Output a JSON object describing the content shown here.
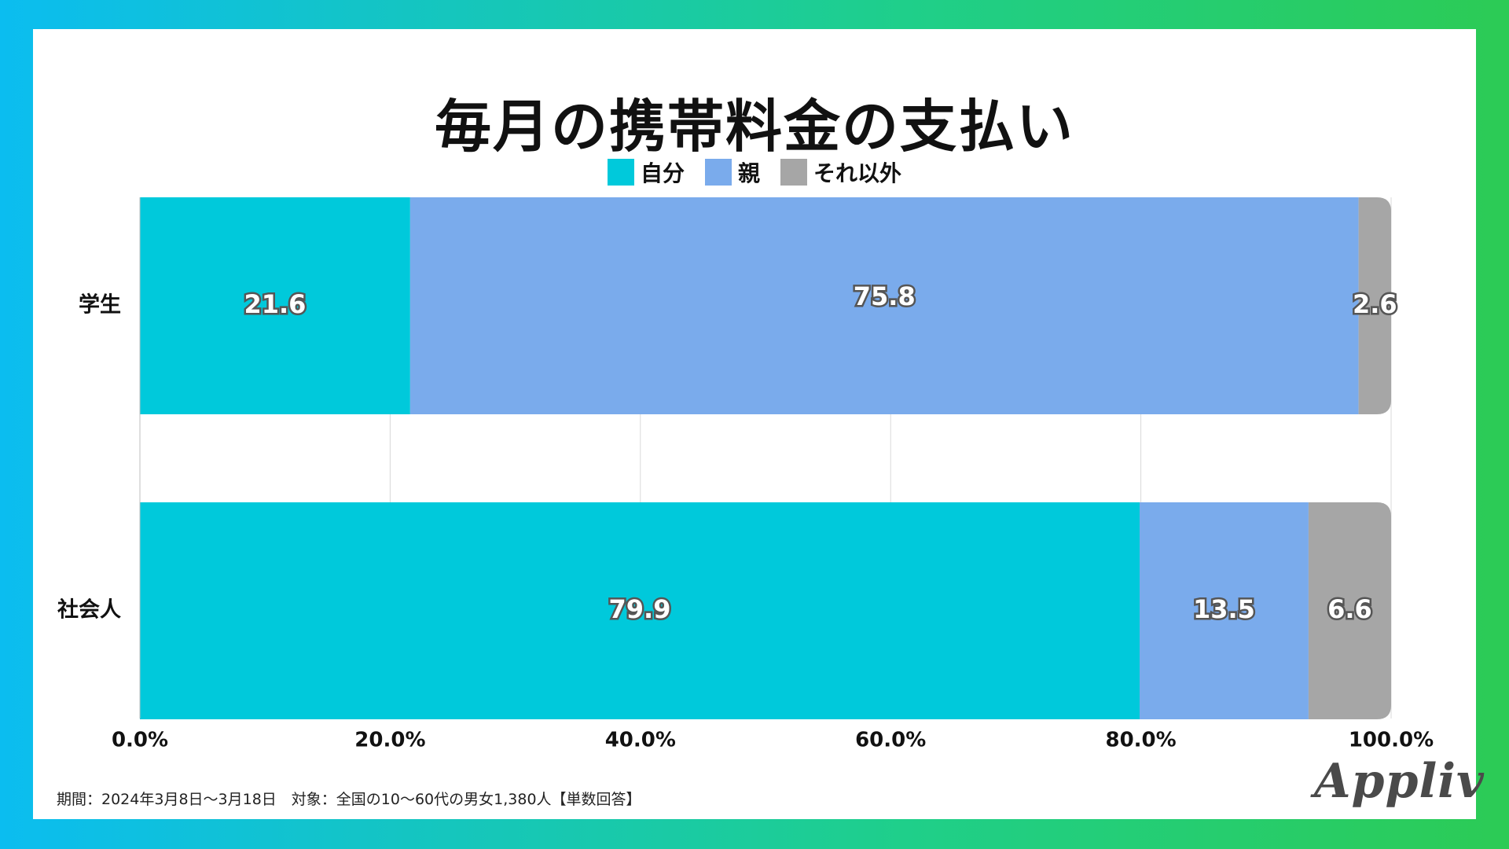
{
  "title": "毎月の携帯料金の支払い",
  "legend": [
    {
      "label": "自分",
      "color": "#00c9db"
    },
    {
      "label": "親",
      "color": "#7aabec"
    },
    {
      "label": "それ以外",
      "color": "#a6a6a6"
    }
  ],
  "chart_data": {
    "type": "bar",
    "orientation": "horizontal",
    "stacked": true,
    "categories": [
      "学生",
      "社会人"
    ],
    "series": [
      {
        "name": "自分",
        "values": [
          21.6,
          79.9
        ],
        "color": "#00c9db"
      },
      {
        "name": "親",
        "values": [
          75.8,
          13.5
        ],
        "color": "#7aabec"
      },
      {
        "name": "それ以外",
        "values": [
          2.6,
          6.6
        ],
        "color": "#a6a6a6"
      }
    ],
    "xlim": [
      0,
      100
    ],
    "xticks": [
      "0.0%",
      "20.0%",
      "40.0%",
      "60.0%",
      "80.0%",
      "100.0%"
    ],
    "grid": true,
    "legend_position": "top"
  },
  "footnote": "期間：2024年3月8日〜3月18日　対象：全国の10〜60代の男女1,380人【単数回答】",
  "logo_text": "Appliv"
}
